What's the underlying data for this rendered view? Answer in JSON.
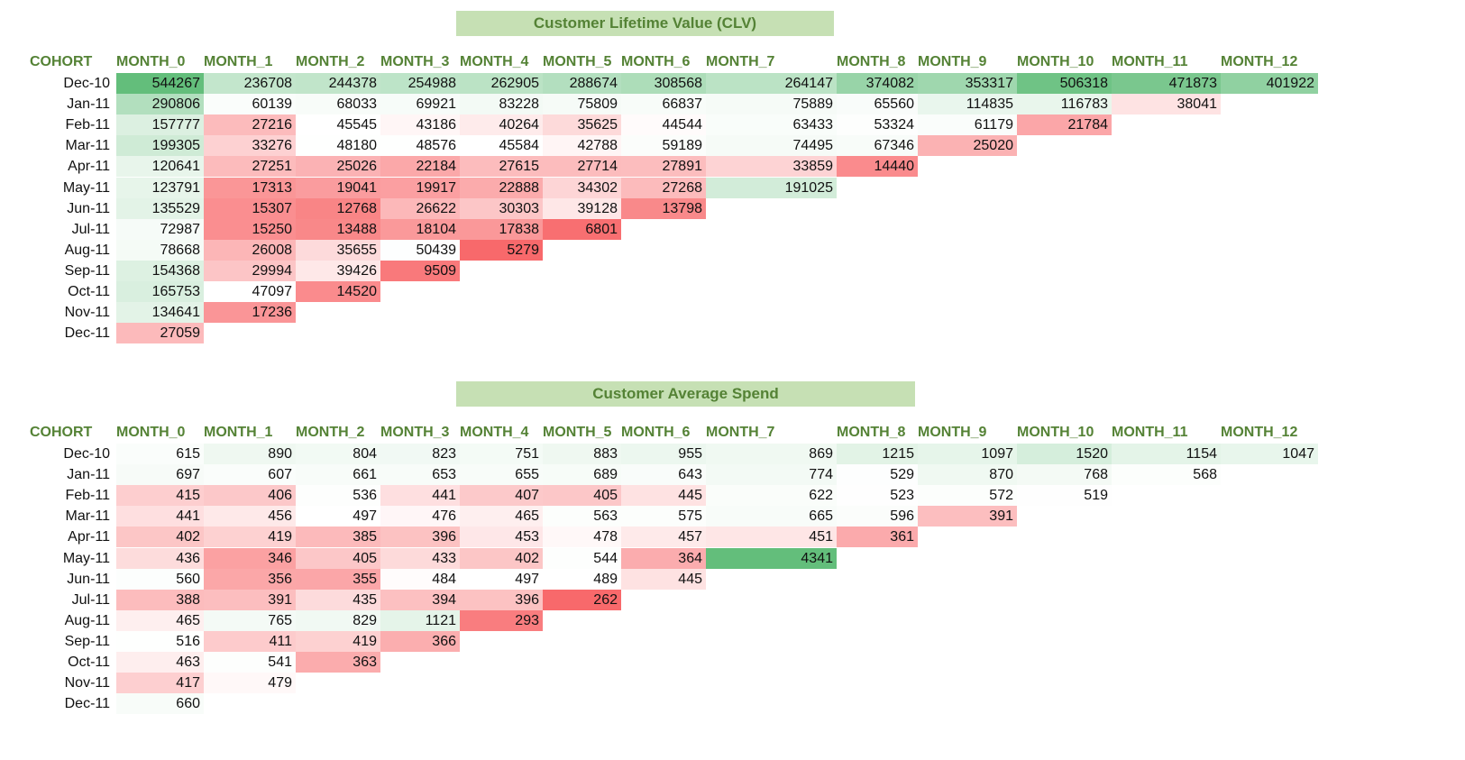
{
  "tables": [
    {
      "title": "Customer Lifetime Value (CLV)",
      "columns": [
        "COHORT",
        "MONTH_0",
        "MONTH_1",
        "MONTH_2",
        "MONTH_3",
        "MONTH_4",
        "MONTH_5",
        "MONTH_6",
        "MONTH_7",
        "MONTH_8",
        "MONTH_9",
        "MONTH_10",
        "MONTH_11",
        "MONTH_12"
      ],
      "rows": [
        {
          "cohort": "Dec-10",
          "values": [
            544267,
            236708,
            244378,
            254988,
            262905,
            288674,
            308568,
            264147,
            374082,
            353317,
            506318,
            471873,
            401922
          ]
        },
        {
          "cohort": "Jan-11",
          "values": [
            290806,
            60139,
            68033,
            69921,
            83228,
            75809,
            66837,
            75889,
            65560,
            114835,
            116783,
            38041
          ]
        },
        {
          "cohort": "Feb-11",
          "values": [
            157777,
            27216,
            45545,
            43186,
            40264,
            35625,
            44544,
            63433,
            53324,
            61179,
            21784
          ]
        },
        {
          "cohort": "Mar-11",
          "values": [
            199305,
            33276,
            48180,
            48576,
            45584,
            42788,
            59189,
            74495,
            67346,
            25020
          ]
        },
        {
          "cohort": "Apr-11",
          "values": [
            120641,
            27251,
            25026,
            22184,
            27615,
            27714,
            27891,
            33859,
            14440
          ]
        },
        {
          "cohort": "May-11",
          "values": [
            123791,
            17313,
            19041,
            19917,
            22888,
            34302,
            27268,
            191025
          ]
        },
        {
          "cohort": "Jun-11",
          "values": [
            135529,
            15307,
            12768,
            26622,
            30303,
            39128,
            13798
          ]
        },
        {
          "cohort": "Jul-11",
          "values": [
            72987,
            15250,
            13488,
            18104,
            17838,
            6801
          ]
        },
        {
          "cohort": "Aug-11",
          "values": [
            78668,
            26008,
            35655,
            50439,
            5279
          ]
        },
        {
          "cohort": "Sep-11",
          "values": [
            154368,
            29994,
            39426,
            9509
          ]
        },
        {
          "cohort": "Oct-11",
          "values": [
            165753,
            47097,
            14520
          ]
        },
        {
          "cohort": "Nov-11",
          "values": [
            134641,
            17236
          ]
        },
        {
          "cohort": "Dec-11",
          "values": [
            27059
          ]
        }
      ]
    },
    {
      "title": "Customer Average Spend",
      "columns": [
        "COHORT",
        "MONTH_0",
        "MONTH_1",
        "MONTH_2",
        "MONTH_3",
        "MONTH_4",
        "MONTH_5",
        "MONTH_6",
        "MONTH_7",
        "MONTH_8",
        "MONTH_9",
        "MONTH_10",
        "MONTH_11",
        "MONTH_12"
      ],
      "rows": [
        {
          "cohort": "Dec-10",
          "values": [
            615,
            890,
            804,
            823,
            751,
            883,
            955,
            869,
            1215,
            1097,
            1520,
            1154,
            1047
          ]
        },
        {
          "cohort": "Jan-11",
          "values": [
            697,
            607,
            661,
            653,
            655,
            689,
            643,
            774,
            529,
            870,
            768,
            568
          ]
        },
        {
          "cohort": "Feb-11",
          "values": [
            415,
            406,
            536,
            441,
            407,
            405,
            445,
            622,
            523,
            572,
            519
          ]
        },
        {
          "cohort": "Mar-11",
          "values": [
            441,
            456,
            497,
            476,
            465,
            563,
            575,
            665,
            596,
            391
          ]
        },
        {
          "cohort": "Apr-11",
          "values": [
            402,
            419,
            385,
            396,
            453,
            478,
            457,
            451,
            361
          ]
        },
        {
          "cohort": "May-11",
          "values": [
            436,
            346,
            405,
            433,
            402,
            544,
            364,
            4341
          ]
        },
        {
          "cohort": "Jun-11",
          "values": [
            560,
            356,
            355,
            484,
            497,
            489,
            445
          ]
        },
        {
          "cohort": "Jul-11",
          "values": [
            388,
            391,
            435,
            394,
            396,
            262
          ]
        },
        {
          "cohort": "Aug-11",
          "values": [
            465,
            765,
            829,
            1121,
            293
          ]
        },
        {
          "cohort": "Sep-11",
          "values": [
            516,
            411,
            419,
            366
          ]
        },
        {
          "cohort": "Oct-11",
          "values": [
            463,
            541,
            363
          ]
        },
        {
          "cohort": "Nov-11",
          "values": [
            417,
            479
          ]
        },
        {
          "cohort": "Dec-11",
          "values": [
            660
          ]
        }
      ]
    }
  ],
  "chart_data": [
    {
      "type": "heatmap",
      "title": "Customer Lifetime Value (CLV)",
      "xlabel": "",
      "ylabel": "",
      "x": [
        "MONTH_0",
        "MONTH_1",
        "MONTH_2",
        "MONTH_3",
        "MONTH_4",
        "MONTH_5",
        "MONTH_6",
        "MONTH_7",
        "MONTH_8",
        "MONTH_9",
        "MONTH_10",
        "MONTH_11",
        "MONTH_12"
      ],
      "y": [
        "Dec-10",
        "Jan-11",
        "Feb-11",
        "Mar-11",
        "Apr-11",
        "May-11",
        "Jun-11",
        "Jul-11",
        "Aug-11",
        "Sep-11",
        "Oct-11",
        "Nov-11",
        "Dec-11"
      ],
      "color_scale": {
        "low": "#f8696b",
        "mid": "#ffffff",
        "high": "#63be7b"
      }
    },
    {
      "type": "heatmap",
      "title": "Customer Average Spend",
      "xlabel": "",
      "ylabel": "",
      "x": [
        "MONTH_0",
        "MONTH_1",
        "MONTH_2",
        "MONTH_3",
        "MONTH_4",
        "MONTH_5",
        "MONTH_6",
        "MONTH_7",
        "MONTH_8",
        "MONTH_9",
        "MONTH_10",
        "MONTH_11",
        "MONTH_12"
      ],
      "y": [
        "Dec-10",
        "Jan-11",
        "Feb-11",
        "Mar-11",
        "Apr-11",
        "May-11",
        "Jun-11",
        "Jul-11",
        "Aug-11",
        "Sep-11",
        "Oct-11",
        "Nov-11",
        "Dec-11"
      ],
      "color_scale": {
        "low": "#f8696b",
        "mid": "#ffffff",
        "high": "#63be7b"
      }
    }
  ],
  "colors": {
    "title_bg": "#c6e0b4",
    "title_fg": "#548235",
    "header_fg": "#548235",
    "low": "#f8696b",
    "mid": "#ffffff",
    "high": "#63be7b"
  }
}
